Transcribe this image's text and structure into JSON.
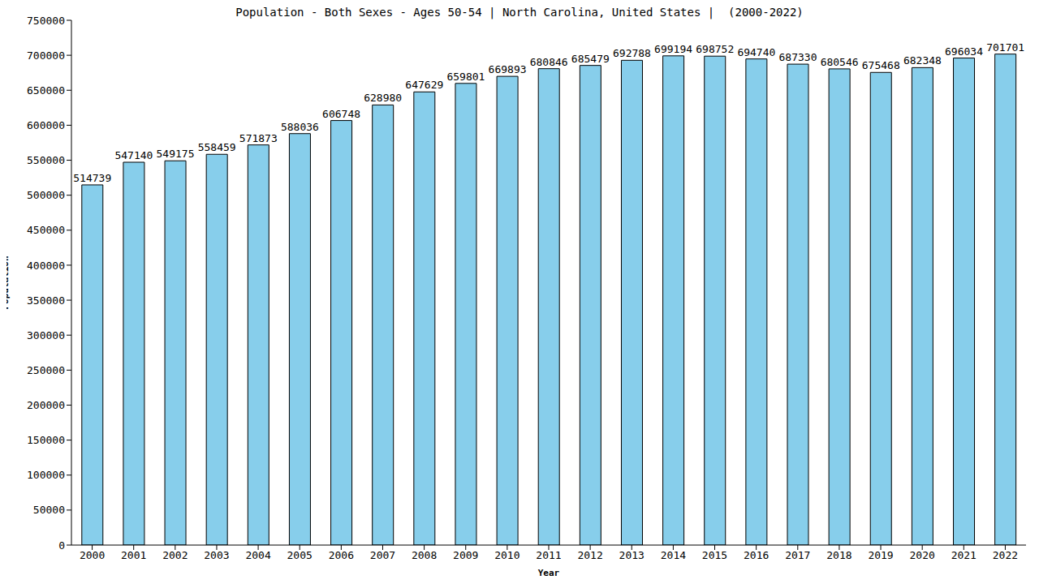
{
  "chart_data": {
    "type": "bar",
    "title": "Population - Both Sexes - Ages 50-54 | North Carolina, United States |  (2000-2022)",
    "x_label": "Year",
    "y_label": "Population",
    "categories": [
      "2000",
      "2001",
      "2002",
      "2003",
      "2004",
      "2005",
      "2006",
      "2007",
      "2008",
      "2009",
      "2010",
      "2011",
      "2012",
      "2013",
      "2014",
      "2015",
      "2016",
      "2017",
      "2018",
      "2019",
      "2020",
      "2021",
      "2022"
    ],
    "values": [
      514739,
      547140,
      549175,
      558459,
      571873,
      588036,
      606748,
      628980,
      647629,
      659801,
      669893,
      680846,
      685479,
      692788,
      699194,
      698752,
      694740,
      687330,
      680546,
      675468,
      682348,
      696034,
      701701
    ],
    "color": "#87ceeb",
    "ylim": [
      0,
      750000
    ],
    "yticks": [
      0,
      50000,
      100000,
      150000,
      200000,
      250000,
      300000,
      350000,
      400000,
      450000,
      500000,
      550000,
      600000,
      650000,
      700000,
      750000
    ],
    "grid": false,
    "data_labels": true
  }
}
